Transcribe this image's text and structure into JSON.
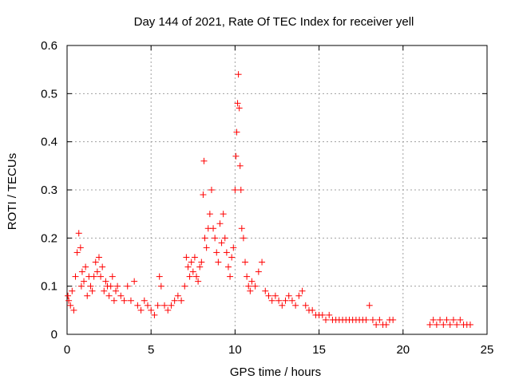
{
  "chart_data": {
    "type": "scatter",
    "title": "Day 144 of 2021, Rate Of TEC Index for receiver yell",
    "xlabel": "GPS time / hours",
    "ylabel": "ROTI / TECUs",
    "xlim": [
      0,
      25
    ],
    "ylim": [
      0,
      0.6
    ],
    "x_ticks": [
      "0",
      "5",
      "10",
      "15",
      "20",
      "25"
    ],
    "y_ticks": [
      "0",
      "0.1",
      "0.2",
      "0.3",
      "0.4",
      "0.5",
      "0.6"
    ],
    "grid": true,
    "marker": "+",
    "color": "#ff0000",
    "series": [
      {
        "name": "ROTI",
        "x": [
          0.05,
          0.1,
          0.2,
          0.3,
          0.4,
          0.5,
          0.6,
          0.7,
          0.8,
          0.85,
          0.9,
          1.0,
          1.1,
          1.2,
          1.3,
          1.4,
          1.5,
          1.6,
          1.7,
          1.8,
          1.9,
          2.0,
          2.1,
          2.2,
          2.3,
          2.4,
          2.5,
          2.6,
          2.7,
          2.8,
          2.9,
          3.0,
          3.2,
          3.4,
          3.6,
          3.8,
          4.0,
          4.2,
          4.4,
          4.6,
          4.8,
          5.0,
          5.2,
          5.4,
          5.5,
          5.6,
          5.8,
          6.0,
          6.2,
          6.4,
          6.6,
          6.8,
          7.0,
          7.1,
          7.2,
          7.3,
          7.4,
          7.5,
          7.6,
          7.7,
          7.8,
          7.9,
          8.0,
          8.1,
          8.15,
          8.2,
          8.3,
          8.4,
          8.5,
          8.6,
          8.7,
          8.8,
          8.9,
          9.0,
          9.1,
          9.2,
          9.3,
          9.4,
          9.5,
          9.6,
          9.7,
          9.8,
          9.9,
          10.0,
          10.05,
          10.1,
          10.15,
          10.2,
          10.25,
          10.3,
          10.35,
          10.4,
          10.5,
          10.6,
          10.7,
          10.8,
          10.9,
          11.0,
          11.2,
          11.4,
          11.6,
          11.8,
          12.0,
          12.2,
          12.4,
          12.6,
          12.8,
          13.0,
          13.2,
          13.4,
          13.6,
          13.8,
          14.0,
          14.2,
          14.4,
          14.6,
          14.8,
          15.0,
          15.2,
          15.4,
          15.6,
          15.8,
          16.0,
          16.2,
          16.4,
          16.6,
          16.8,
          17.0,
          17.2,
          17.4,
          17.6,
          17.8,
          18.0,
          18.2,
          18.4,
          18.6,
          18.8,
          19.0,
          19.2,
          19.4,
          21.6,
          21.8,
          22.0,
          22.2,
          22.4,
          22.6,
          22.8,
          23.0,
          23.2,
          23.4,
          23.6,
          23.8,
          24.0
        ],
        "y": [
          0.08,
          0.07,
          0.06,
          0.09,
          0.05,
          0.12,
          0.17,
          0.21,
          0.18,
          0.1,
          0.13,
          0.11,
          0.14,
          0.08,
          0.12,
          0.1,
          0.09,
          0.12,
          0.15,
          0.13,
          0.16,
          0.12,
          0.14,
          0.09,
          0.11,
          0.1,
          0.08,
          0.1,
          0.12,
          0.07,
          0.09,
          0.1,
          0.08,
          0.07,
          0.1,
          0.07,
          0.11,
          0.06,
          0.05,
          0.07,
          0.06,
          0.05,
          0.04,
          0.06,
          0.12,
          0.1,
          0.06,
          0.05,
          0.06,
          0.07,
          0.08,
          0.07,
          0.1,
          0.16,
          0.14,
          0.12,
          0.15,
          0.13,
          0.16,
          0.12,
          0.11,
          0.14,
          0.15,
          0.29,
          0.36,
          0.2,
          0.18,
          0.22,
          0.25,
          0.3,
          0.22,
          0.2,
          0.17,
          0.15,
          0.23,
          0.19,
          0.25,
          0.2,
          0.17,
          0.14,
          0.12,
          0.16,
          0.18,
          0.3,
          0.37,
          0.42,
          0.48,
          0.54,
          0.47,
          0.35,
          0.3,
          0.22,
          0.2,
          0.15,
          0.12,
          0.1,
          0.09,
          0.11,
          0.1,
          0.13,
          0.15,
          0.09,
          0.08,
          0.07,
          0.08,
          0.07,
          0.06,
          0.07,
          0.08,
          0.07,
          0.06,
          0.08,
          0.09,
          0.06,
          0.05,
          0.05,
          0.04,
          0.04,
          0.04,
          0.03,
          0.04,
          0.03,
          0.03,
          0.03,
          0.03,
          0.03,
          0.03,
          0.03,
          0.03,
          0.03,
          0.03,
          0.03,
          0.06,
          0.03,
          0.02,
          0.03,
          0.02,
          0.02,
          0.03,
          0.03,
          0.02,
          0.03,
          0.02,
          0.03,
          0.02,
          0.03,
          0.02,
          0.03,
          0.02,
          0.03,
          0.02,
          0.02,
          0.02
        ]
      }
    ]
  }
}
